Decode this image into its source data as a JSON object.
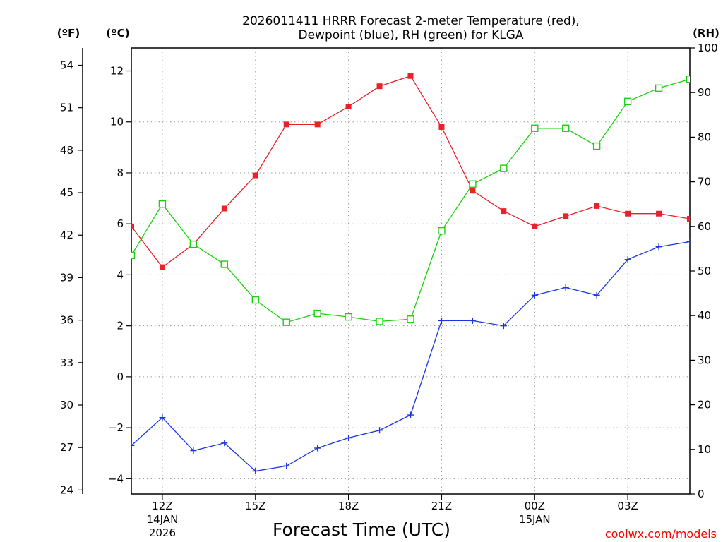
{
  "chart_data": {
    "type": "line",
    "title_line1": "2026011411 HRRR Forecast 2-meter Temperature (red),",
    "title_line2": "Dewpoint (blue), RH (green) for KLGA",
    "xlabel": "Forecast Time (UTC)",
    "credit": "coolwx.com/models",
    "left_unit_f": "(ºF)",
    "left_unit_c": "(ºC)",
    "right_unit": "(RH)",
    "x": [
      11,
      12,
      13,
      14,
      15,
      16,
      17,
      18,
      19,
      20,
      21,
      22,
      23,
      24,
      25,
      26,
      27,
      28,
      29
    ],
    "x_ticks": [
      {
        "x": 12,
        "label": "12Z",
        "sub1": "14JAN",
        "sub2": "2026"
      },
      {
        "x": 15,
        "label": "15Z",
        "sub1": "",
        "sub2": ""
      },
      {
        "x": 18,
        "label": "18Z",
        "sub1": "",
        "sub2": ""
      },
      {
        "x": 21,
        "label": "21Z",
        "sub1": "",
        "sub2": ""
      },
      {
        "x": 24,
        "label": "00Z",
        "sub1": "15JAN",
        "sub2": ""
      },
      {
        "x": 27,
        "label": "03Z",
        "sub1": "",
        "sub2": ""
      }
    ],
    "xlim": [
      11,
      29
    ],
    "ylim_c": [
      -4.6,
      12.9
    ],
    "ylim_rh": [
      0,
      100
    ],
    "yticks_c": [
      12,
      10,
      8,
      6,
      4,
      2,
      0,
      -2,
      -4
    ],
    "yticks_f": [
      54,
      51,
      48,
      45,
      42,
      39,
      36,
      33,
      30,
      27,
      24
    ],
    "yticks_rh": [
      100,
      90,
      80,
      70,
      60,
      50,
      40,
      30,
      20,
      10,
      0
    ],
    "series": [
      {
        "name": "Temperature",
        "axis": "c",
        "color": "#e8222a",
        "marker": "filled-square",
        "values": [
          5.9,
          4.3,
          5.2,
          6.6,
          7.9,
          9.9,
          9.9,
          10.6,
          11.4,
          11.8,
          9.8,
          7.3,
          6.5,
          5.9,
          6.3,
          6.7,
          6.4,
          6.4,
          6.2
        ]
      },
      {
        "name": "Dewpoint",
        "axis": "c",
        "color": "#1a35e0",
        "marker": "plus",
        "values": [
          -2.7,
          -1.6,
          -2.9,
          -2.6,
          -3.7,
          -3.5,
          -2.8,
          -2.4,
          -2.1,
          -1.5,
          2.2,
          2.2,
          2.0,
          3.2,
          3.5,
          3.2,
          4.6,
          5.1,
          5.3
        ]
      },
      {
        "name": "RH",
        "axis": "rh",
        "color": "#19d10f",
        "marker": "open-square",
        "values": [
          53.5,
          65.0,
          56.0,
          51.5,
          43.5,
          38.5,
          40.5,
          39.7,
          38.7,
          39.2,
          59.0,
          69.5,
          73.0,
          82.0,
          82.0,
          78.0,
          88.0,
          91.0,
          93.0
        ]
      }
    ]
  }
}
